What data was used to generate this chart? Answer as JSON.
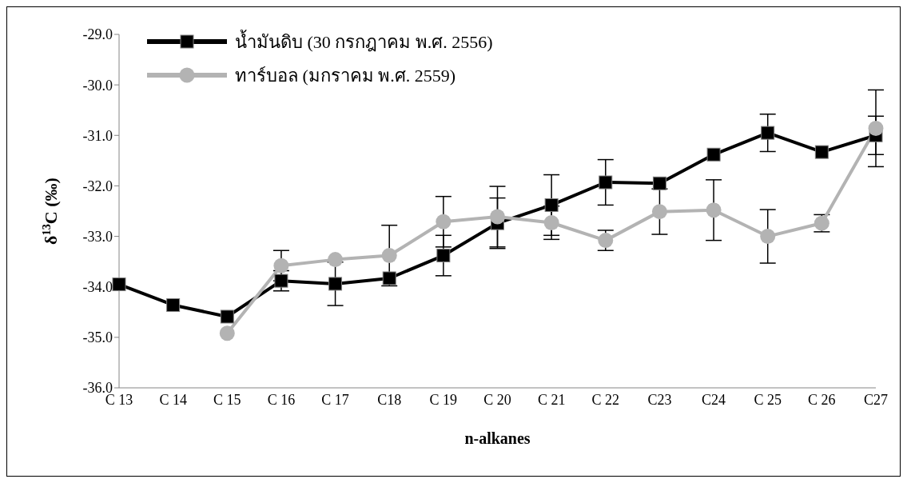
{
  "chart_data": {
    "type": "line",
    "xlabel": "n-alkanes",
    "ylabel": "δ$^{13}$C (‰)",
    "categories": [
      "C 13",
      "C 14",
      "C 15",
      "C 16",
      "C 17",
      "C18",
      "C 19",
      "C 20",
      "C 21",
      "C 22",
      "C23",
      "C24",
      "C 25",
      "C 26",
      "C27"
    ],
    "series": [
      {
        "name": "น้ำมันดิบ (30 กรกฎาคม พ.ศ. 2556)",
        "color": "#000000",
        "marker": "square",
        "values": [
          -33.95,
          -34.36,
          -34.59,
          -33.88,
          -33.94,
          -33.83,
          -33.38,
          -32.74,
          -32.38,
          -31.93,
          -31.95,
          -31.38,
          -30.95,
          -31.33,
          -31.0
        ],
        "errors": [
          null,
          null,
          null,
          0.2,
          0.43,
          null,
          0.4,
          0.5,
          0.6,
          0.45,
          null,
          null,
          0.37,
          null,
          0.38
        ]
      },
      {
        "name": "ทาร์บอล (มกราคม พ.ศ. 2559)",
        "color": "#b3b3b3",
        "marker": "circle",
        "values": [
          null,
          null,
          -34.92,
          -33.58,
          -33.46,
          -33.38,
          -32.71,
          -32.61,
          -32.73,
          -33.08,
          -32.51,
          -32.48,
          -33.0,
          -32.74,
          -30.86
        ],
        "errors": [
          null,
          null,
          null,
          0.3,
          null,
          0.6,
          0.5,
          0.6,
          0.33,
          0.2,
          0.45,
          0.6,
          0.53,
          0.17,
          0.76
        ]
      }
    ],
    "ylim": [
      -36,
      -29
    ],
    "yticks": [
      {
        "value": -36,
        "label": "-36.0"
      },
      {
        "value": -35,
        "label": "-35.0"
      },
      {
        "value": -34,
        "label": "-34.0"
      },
      {
        "value": -33,
        "label": "-33.0"
      },
      {
        "value": -32,
        "label": "-32.0"
      },
      {
        "value": -31,
        "label": "-31.0"
      },
      {
        "value": -30,
        "label": "-30.0"
      },
      {
        "value": -29,
        "label": "-29.0"
      }
    ],
    "legend": "top left"
  }
}
